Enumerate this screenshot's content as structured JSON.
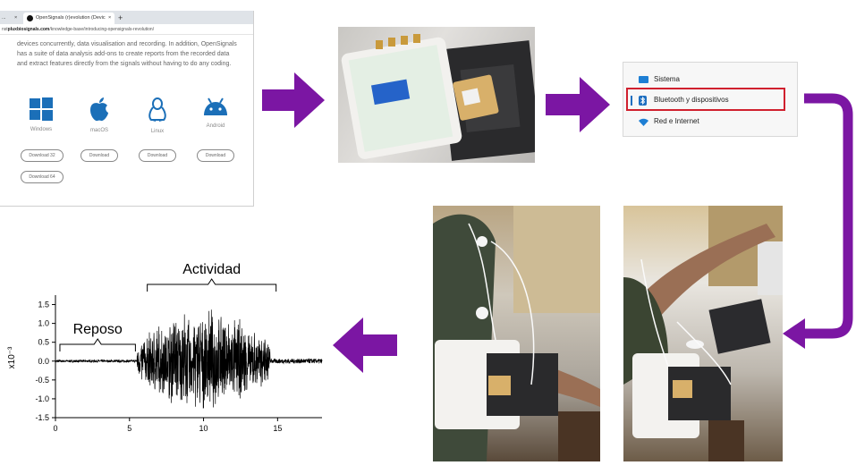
{
  "browser": {
    "tab_left": "...",
    "tab_active": "OpenSignals (r)evolution (Devic",
    "url_host": "pluxbiosignals.com",
    "url_path": "/knowledge-base/introducing-opensignals-revolution/",
    "url_prefix": "nst",
    "description": "devices concurrently, data visualisation and recording. In addition, OpenSignals has a suite of data analysis add-ons to create reports from the recorded data and extract features directly from the signals without having to do any coding.",
    "os": [
      {
        "name": "Windows",
        "icon": "windows-icon"
      },
      {
        "name": "macOS",
        "icon": "apple-icon"
      },
      {
        "name": "Linux",
        "icon": "linux-icon"
      },
      {
        "name": "Android",
        "icon": "android-icon"
      }
    ],
    "downloads": {
      "win32": "Download 32",
      "win64": "Download 64",
      "mac": "Download",
      "linux": "Download",
      "android": "Download"
    }
  },
  "settings": {
    "items": [
      {
        "label": "Sistema",
        "icon": "monitor-icon"
      },
      {
        "label": "Bluetooth y dispositivos",
        "icon": "bluetooth-icon"
      },
      {
        "label": "Red e Internet",
        "icon": "wifi-icon"
      }
    ],
    "highlight_color": "#d0202e"
  },
  "arrow_color": "#7b16a3",
  "chart_data": {
    "type": "line",
    "ylabel": "x10⁻³",
    "xlim": [
      0,
      18
    ],
    "ylim": [
      -1.5,
      1.75
    ],
    "x_ticks": [
      0,
      5,
      10,
      15
    ],
    "y_ticks": [
      1.5,
      1.0,
      0.5,
      0.0,
      -0.5,
      -1.0,
      -1.5
    ],
    "annotations": [
      {
        "text": "Reposo",
        "x_from": 0.3,
        "x_to": 5.4
      },
      {
        "text": "Actividad",
        "x_from": 6.2,
        "x_to": 14.9
      }
    ],
    "segments": [
      {
        "phase": "Reposo",
        "x_from": 0,
        "x_to": 5.5,
        "amplitude": 0.03
      },
      {
        "phase": "Actividad",
        "x_from": 5.5,
        "x_to": 14.5,
        "amplitude": 1.45
      },
      {
        "phase": "Reposo",
        "x_from": 14.5,
        "x_to": 18,
        "amplitude": 0.06
      }
    ]
  }
}
